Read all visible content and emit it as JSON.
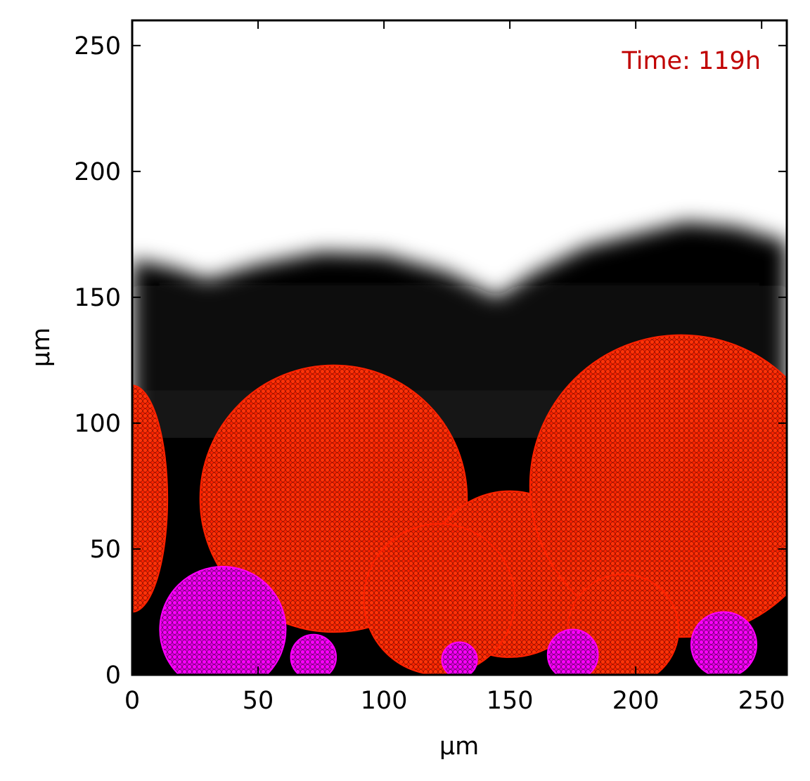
{
  "chart_data": {
    "type": "scatter",
    "xlabel": "μm",
    "ylabel": "μm",
    "xlim": [
      0,
      260
    ],
    "ylim": [
      0,
      260
    ],
    "x_ticks": [
      0,
      50,
      100,
      150,
      200,
      250
    ],
    "y_ticks": [
      0,
      50,
      100,
      150,
      200,
      250
    ],
    "grid": false,
    "annotation": {
      "text": "Time: 119h",
      "color": "#c00000",
      "placement": "top-right"
    },
    "background": {
      "description_type": "grayscale concentration field",
      "dark_color": "#000000",
      "light_color": "#ffffff",
      "boundary_profile": [
        [
          0,
          165
        ],
        [
          15,
          162
        ],
        [
          30,
          157
        ],
        [
          50,
          163
        ],
        [
          75,
          168
        ],
        [
          100,
          167
        ],
        [
          125,
          160
        ],
        [
          145,
          150
        ],
        [
          160,
          160
        ],
        [
          180,
          170
        ],
        [
          200,
          175
        ],
        [
          220,
          180
        ],
        [
          240,
          178
        ],
        [
          260,
          172
        ]
      ]
    },
    "series": [
      {
        "color": "#ff2200",
        "clusters": [
          {
            "cx": 0,
            "cy": 70,
            "rx": 14,
            "ry": 45
          },
          {
            "cx": 80,
            "cy": 70,
            "r": 53
          },
          {
            "cx": 150,
            "cy": 40,
            "r": 33
          },
          {
            "cx": 218,
            "cy": 75,
            "r": 60
          },
          {
            "cx": 122,
            "cy": 30,
            "r": 30
          },
          {
            "cx": 195,
            "cy": 18,
            "r": 22
          }
        ]
      },
      {
        "color": "#ff00ff",
        "clusters": [
          {
            "cx": 36,
            "cy": 18,
            "r": 25
          },
          {
            "cx": 72,
            "cy": 7,
            "r": 9
          },
          {
            "cx": 130,
            "cy": 6,
            "r": 7
          },
          {
            "cx": 175,
            "cy": 8,
            "r": 10
          },
          {
            "cx": 235,
            "cy": 12,
            "r": 13
          }
        ]
      }
    ]
  }
}
